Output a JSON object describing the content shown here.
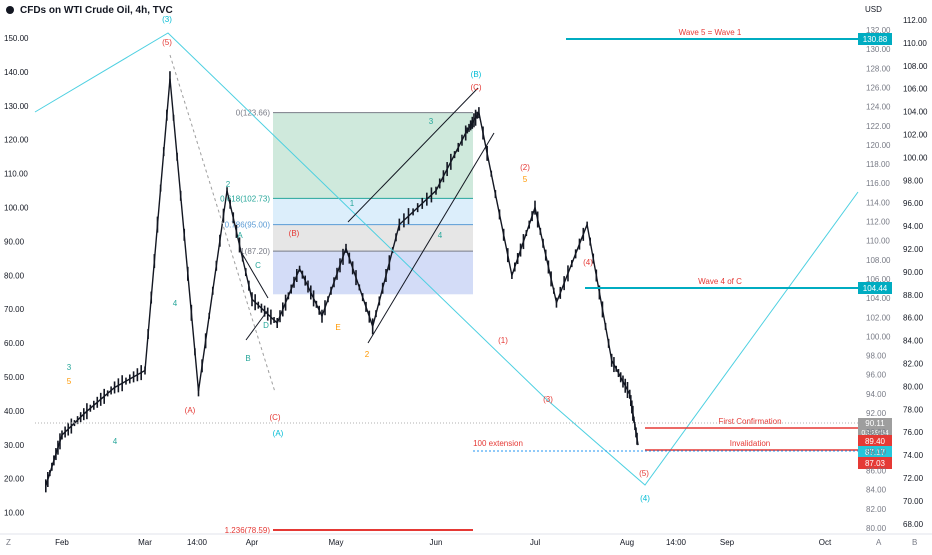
{
  "chart_data": {
    "type": "line",
    "title": "CFDs on WTI Crude Oil, 4h, TVC",
    "currency": "USD",
    "x_ticks": [
      "Feb",
      "Mar",
      "14:00",
      "Apr",
      "May",
      "Jun",
      "Jul",
      "Aug",
      "14:00",
      "Sep",
      "Oct"
    ],
    "left_axis_ticks": [
      "150.00",
      "140.00",
      "130.00",
      "120.00",
      "110.00",
      "100.00",
      "90.00",
      "80.00",
      "70.00",
      "60.00",
      "50.00",
      "40.00",
      "30.00",
      "20.00",
      "10.00"
    ],
    "right_axis_ticks": [
      "USD",
      "132.00",
      "130.00",
      "128.00",
      "126.00",
      "124.00",
      "122.00",
      "120.00",
      "118.00",
      "116.00",
      "114.00",
      "112.00",
      "110.00",
      "108.00",
      "106.00",
      "104.00",
      "102.00",
      "100.00",
      "98.00",
      "96.00",
      "94.00",
      "92.00",
      "90.00",
      "88.00",
      "86.00",
      "84.00",
      "82.00",
      "80.00",
      "112.00",
      "110.00",
      "108.00",
      "106.00",
      "104.00",
      "102.00",
      "100.00",
      "98.00",
      "96.00",
      "94.00",
      "92.00",
      "90.00",
      "88.00",
      "86.00",
      "84.00",
      "82.00",
      "80.00",
      "78.00",
      "76.00",
      "74.00",
      "72.00",
      "70.00",
      "68.00"
    ],
    "price_series": [
      [
        "Jan 25",
        18
      ],
      [
        "Feb 1",
        33
      ],
      [
        "Feb 10",
        40
      ],
      [
        "Feb 20",
        47
      ],
      [
        "Mar 1",
        52
      ],
      [
        "Mar 8",
        138
      ],
      [
        "Mar 16",
        46
      ],
      [
        "Mar 24",
        105
      ],
      [
        "Apr 1",
        73
      ],
      [
        "Apr 10",
        66
      ],
      [
        "Apr 18",
        82
      ],
      [
        "Apr 26",
        68
      ],
      [
        "May 4",
        88
      ],
      [
        "May 12",
        65
      ],
      [
        "May 20",
        95
      ],
      [
        "Jun 1",
        105
      ],
      [
        "Jun 10",
        122
      ],
      [
        "Jun 14",
        128
      ],
      [
        "Jun 24",
        80
      ],
      [
        "Jul 1",
        100
      ],
      [
        "Jul 8",
        72
      ],
      [
        "Jul 18",
        95
      ],
      [
        "Jul 26",
        55
      ],
      [
        "Aug 2",
        45
      ],
      [
        "Aug 5",
        30
      ]
    ],
    "fib_levels": [
      {
        "label": "0(123.66)",
        "value": 123.66
      },
      {
        "label": "0.618(102.73)",
        "value": 102.73
      },
      {
        "label": "0.786(95.00)",
        "value": 95.0
      },
      {
        "label": "1(87.20)",
        "value": 87.2
      },
      {
        "label": "1.236(78.59)",
        "value": 78.59
      }
    ],
    "horizontal_lines": [
      {
        "label": "Wave 5 = Wave 1",
        "price_tag": "130.88"
      },
      {
        "label": "Wave 4 of C",
        "price_tag": "104.44"
      },
      {
        "label": "First Confirmation",
        "price_tag": "89.40"
      },
      {
        "label": "Invalidation",
        "price_tag": "87.03"
      },
      {
        "label": "100 extension",
        "price_tag": "87.17"
      }
    ],
    "current_price": {
      "value": "90.11",
      "countdown": "03:29:54"
    },
    "wave_labels": [
      "(3)",
      "(5)",
      "(B)",
      "(C)",
      "(A)",
      "(B)",
      "(C)",
      "(A)",
      "(2)",
      "(1)",
      "(3)",
      "(4)",
      "(5)",
      "(4)",
      "3",
      "5",
      "4",
      "2",
      "4",
      "A",
      "B",
      "C",
      "D",
      "E",
      "1",
      "2",
      "3",
      "4",
      "5",
      "0.618(102.73)",
      "0.786(95.00)"
    ],
    "colors": {
      "bull": "#26a69a",
      "bear": "#ef5350",
      "teal_line": "#00bcd4",
      "fib_green": "#c8e6c9",
      "fib_blue": "#bbdefb",
      "fib_grey": "#e0e0e0",
      "red_line": "#e53935"
    }
  },
  "corner_left": "Z",
  "corner_right_a": "A",
  "corner_right_b": "B"
}
